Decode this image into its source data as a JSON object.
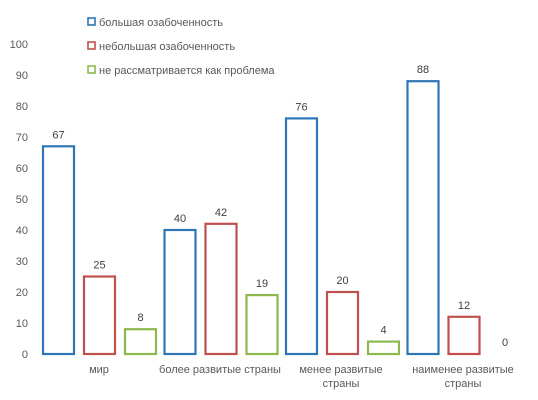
{
  "chart_data": {
    "type": "bar",
    "title": "",
    "xlabel": "",
    "ylabel": "",
    "ylim": [
      0,
      100
    ],
    "yticks": [
      0,
      10,
      20,
      30,
      40,
      50,
      60,
      70,
      80,
      90,
      100
    ],
    "grid": false,
    "legend_position": "top-center",
    "categories": [
      [
        "мир"
      ],
      [
        "более развитые страны"
      ],
      [
        "менее развитые",
        "страны"
      ],
      [
        "наименее развитые",
        "страны"
      ]
    ],
    "series": [
      {
        "name": "большая озабоченность",
        "color": "#2e75b6",
        "values": [
          67,
          40,
          76,
          88
        ]
      },
      {
        "name": "небольшая озабоченность",
        "color": "#c0504d",
        "values": [
          25,
          42,
          20,
          12
        ]
      },
      {
        "name": "не рассматривается как проблема",
        "color": "#8db94c",
        "values": [
          8,
          19,
          4,
          0
        ]
      }
    ]
  }
}
